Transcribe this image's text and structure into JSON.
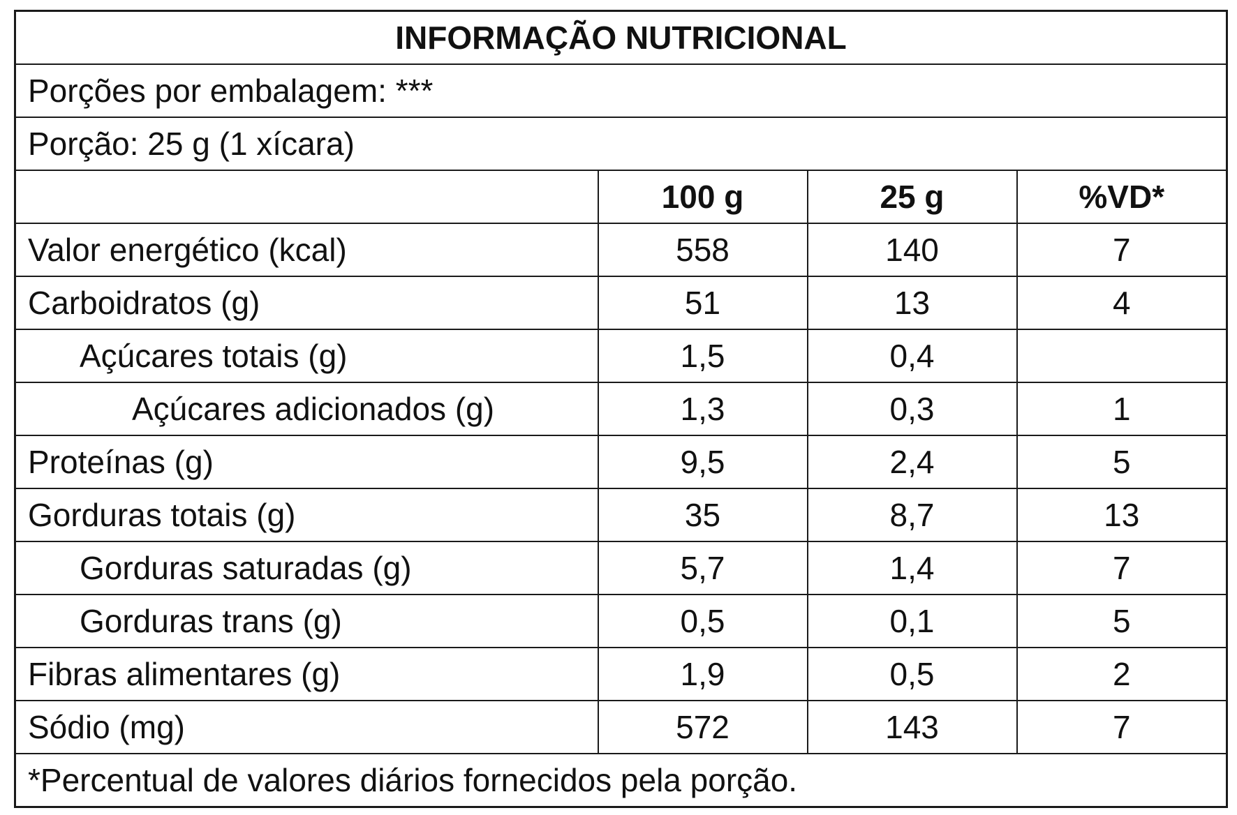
{
  "title": "INFORMAÇÃO NUTRICIONAL",
  "servings_per_package": "Porções por embalagem: ***",
  "serving_size": "Porção: 25 g (1 xícara)",
  "columns": {
    "name": "",
    "per_100g": "100 g",
    "per_serving": "25 g",
    "daily_value": "%VD*"
  },
  "rows": [
    {
      "name": "Valor energético (kcal)",
      "per_100g": "558",
      "per_serving": "140",
      "daily_value": "7",
      "indent": 0
    },
    {
      "name": "Carboidratos (g)",
      "per_100g": "51",
      "per_serving": "13",
      "daily_value": "4",
      "indent": 0
    },
    {
      "name": "Açúcares totais (g)",
      "per_100g": "1,5",
      "per_serving": "0,4",
      "daily_value": "",
      "indent": 1
    },
    {
      "name": "Açúcares adicionados (g)",
      "per_100g": "1,3",
      "per_serving": "0,3",
      "daily_value": "1",
      "indent": 2
    },
    {
      "name": "Proteínas (g)",
      "per_100g": "9,5",
      "per_serving": "2,4",
      "daily_value": "5",
      "indent": 0
    },
    {
      "name": "Gorduras totais (g)",
      "per_100g": "35",
      "per_serving": "8,7",
      "daily_value": "13",
      "indent": 0
    },
    {
      "name": "Gorduras saturadas (g)",
      "per_100g": "5,7",
      "per_serving": "1,4",
      "daily_value": "7",
      "indent": 1
    },
    {
      "name": "Gorduras trans (g)",
      "per_100g": "0,5",
      "per_serving": "0,1",
      "daily_value": "5",
      "indent": 1
    },
    {
      "name": "Fibras alimentares (g)",
      "per_100g": "1,9",
      "per_serving": "0,5",
      "daily_value": "2",
      "indent": 0
    },
    {
      "name": "Sódio (mg)",
      "per_100g": "572",
      "per_serving": "143",
      "daily_value": "7",
      "indent": 0
    }
  ],
  "footnote": "*Percentual de valores diários fornecidos pela porção."
}
